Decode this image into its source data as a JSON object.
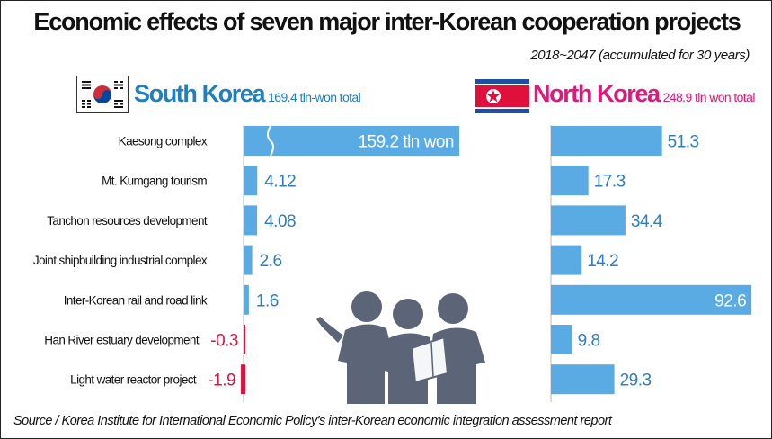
{
  "chart_data": {
    "type": "bar",
    "title": "Economic effects of seven major inter-Korean cooperation projects",
    "subtitle": "2018~2047 (accumulated for 30 years)",
    "categories": [
      "Kaesong complex",
      "Mt. Kumgang tourism",
      "Tanchon resources development",
      "Joint shipbuilding industrial complex",
      "Inter-Korean rail and road link",
      "Han River estuary development",
      "Light water reactor project"
    ],
    "series": [
      {
        "name": "South Korea",
        "total_label": "169.4 tln-won total",
        "values": [
          159.2,
          4.12,
          4.08,
          2.6,
          1.6,
          -0.3,
          -1.9
        ],
        "labels": [
          "159.2 tln won",
          "4.12",
          "4.08",
          "2.6",
          "1.6",
          "-0.3",
          "-1.9"
        ]
      },
      {
        "name": "North Korea",
        "total_label": "248.9 tln won total",
        "values": [
          51.3,
          17.3,
          34.4,
          14.2,
          92.6,
          9.8,
          29.3
        ],
        "labels": [
          "51.3",
          "17.3",
          "34.4",
          "14.2",
          "92.6",
          "9.8",
          "29.3"
        ]
      }
    ],
    "notes": "South Korea Kaesong bar is drawn with an axis break",
    "colors": {
      "bar": "#5aabe3",
      "negative": "#e0103c",
      "south_label": "#1f7fc0",
      "north_label": "#e0187a",
      "value_label": "#2f7dc0"
    }
  },
  "source": "Source / Korea Institute for International Economic Policy's inter-Korean economic integration assessment report"
}
